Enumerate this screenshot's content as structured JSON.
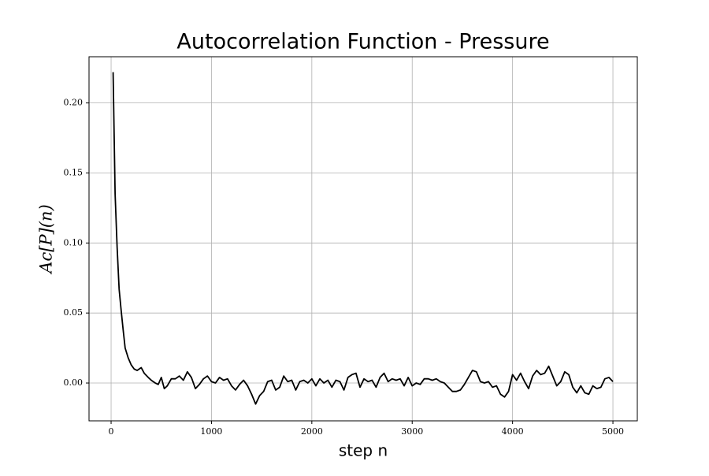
{
  "chart_data": {
    "type": "line",
    "title": "Autocorrelation Function - Pressure",
    "x_label": "step n",
    "y_label": "Ac[P](n)",
    "xlim": [
      -220,
      5243
    ],
    "ylim": [
      -0.027,
      0.233
    ],
    "xticks": [
      0,
      1000,
      2000,
      3000,
      4000,
      5000
    ],
    "yticks": [
      {
        "value": 0,
        "label": "0.00"
      },
      {
        "value": 0.05,
        "label": "0.05"
      },
      {
        "value": 0.1,
        "label": "0.10"
      },
      {
        "value": 0.15,
        "label": "0.15"
      },
      {
        "value": 0.2,
        "label": "0.20"
      }
    ],
    "grid": true,
    "color": "#000000",
    "x": [
      20,
      40,
      60,
      80,
      100,
      120,
      140,
      170,
      200,
      230,
      260,
      300,
      330,
      370,
      400,
      440,
      470,
      500,
      530,
      560,
      600,
      640,
      680,
      720,
      760,
      800,
      840,
      880,
      920,
      960,
      1000,
      1040,
      1080,
      1120,
      1160,
      1200,
      1240,
      1280,
      1320,
      1360,
      1400,
      1440,
      1480,
      1520,
      1560,
      1600,
      1640,
      1680,
      1720,
      1760,
      1800,
      1840,
      1880,
      1920,
      1960,
      2000,
      2040,
      2080,
      2120,
      2160,
      2200,
      2240,
      2280,
      2320,
      2360,
      2400,
      2440,
      2480,
      2520,
      2560,
      2600,
      2640,
      2680,
      2720,
      2760,
      2800,
      2840,
      2880,
      2920,
      2960,
      3000,
      3040,
      3080,
      3120,
      3160,
      3200,
      3240,
      3280,
      3320,
      3360,
      3400,
      3440,
      3480,
      3520,
      3560,
      3600,
      3640,
      3680,
      3720,
      3760,
      3800,
      3840,
      3880,
      3920,
      3960,
      4000,
      4040,
      4080,
      4120,
      4160,
      4200,
      4240,
      4280,
      4320,
      4360,
      4400,
      4440,
      4480,
      4520,
      4560,
      4600,
      4640,
      4680,
      4720,
      4760,
      4800,
      4840,
      4880,
      4920,
      4960,
      5000
    ],
    "values": [
      0.222,
      0.135,
      0.097,
      0.067,
      0.052,
      0.038,
      0.025,
      0.018,
      0.013,
      0.01,
      0.009,
      0.011,
      0.007,
      0.004,
      0.002,
      0.0,
      -0.001,
      0.004,
      -0.004,
      -0.002,
      0.003,
      0.003,
      0.005,
      0.002,
      0.008,
      0.004,
      -0.004,
      -0.001,
      0.003,
      0.005,
      0.001,
      0.0,
      0.004,
      0.002,
      0.003,
      -0.002,
      -0.005,
      -0.001,
      0.002,
      -0.002,
      -0.008,
      -0.015,
      -0.009,
      -0.006,
      0.001,
      0.002,
      -0.005,
      -0.003,
      0.005,
      0.001,
      0.002,
      -0.005,
      0.001,
      0.002,
      0.0,
      0.003,
      -0.002,
      0.003,
      0.0,
      0.002,
      -0.003,
      0.002,
      0.001,
      -0.005,
      0.004,
      0.006,
      0.007,
      -0.003,
      0.003,
      0.001,
      0.002,
      -0.003,
      0.004,
      0.007,
      0.001,
      0.003,
      0.002,
      0.003,
      -0.002,
      0.004,
      -0.002,
      0.0,
      -0.001,
      0.003,
      0.003,
      0.002,
      0.003,
      0.001,
      0.0,
      -0.003,
      -0.006,
      -0.006,
      -0.005,
      -0.001,
      0.004,
      0.009,
      0.008,
      0.001,
      0.0,
      0.001,
      -0.003,
      -0.002,
      -0.008,
      -0.01,
      -0.006,
      0.006,
      0.002,
      0.007,
      0.001,
      -0.004,
      0.005,
      0.009,
      0.006,
      0.007,
      0.012,
      0.005,
      -0.002,
      0.001,
      0.008,
      0.006,
      -0.003,
      -0.007,
      -0.002,
      -0.007,
      -0.008,
      -0.002,
      -0.004,
      -0.003,
      0.003,
      0.004,
      0.001
    ]
  }
}
